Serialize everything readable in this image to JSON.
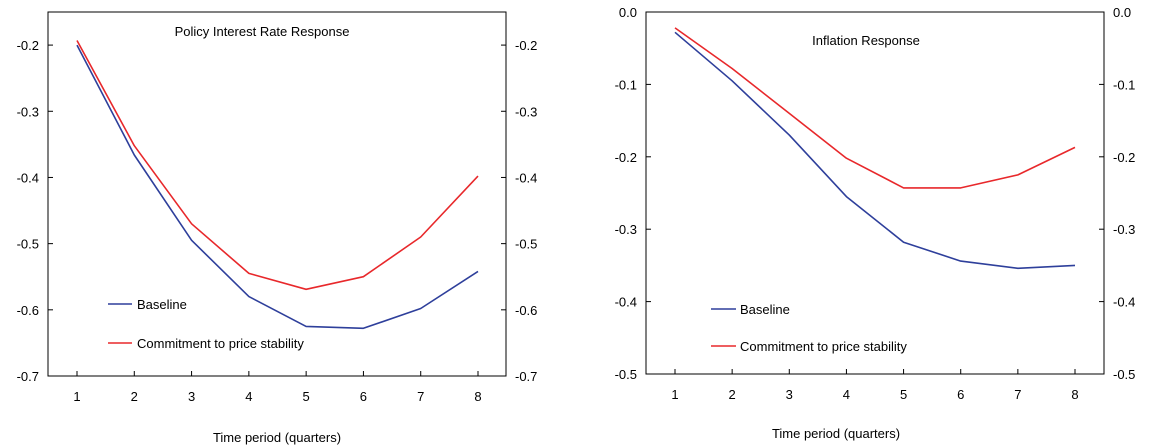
{
  "chart_data": [
    {
      "type": "line",
      "title": "Policy Interest Rate Response",
      "xlabel": "Time period (quarters)",
      "ylabel": "",
      "x": [
        1,
        2,
        3,
        4,
        5,
        6,
        7,
        8
      ],
      "x_tick_labels": [
        "1",
        "2",
        "3",
        "4",
        "5",
        "6",
        "7",
        "8"
      ],
      "ylim": [
        -0.7,
        -0.15
      ],
      "y_ticks": [
        -0.2,
        -0.3,
        -0.4,
        -0.5,
        -0.6,
        -0.7
      ],
      "y_tick_labels": [
        "-0.2",
        "-0.3",
        "-0.4",
        "-0.5",
        "-0.6",
        "-0.7"
      ],
      "right_axis_mirror": true,
      "legend_position": "bottom-left",
      "grid": false,
      "series": [
        {
          "name": "Baseline",
          "color": "#2e3f9b",
          "values": [
            -0.2,
            -0.366,
            -0.495,
            -0.58,
            -0.625,
            -0.628,
            -0.598,
            -0.542
          ]
        },
        {
          "name": "Commitment to price stability",
          "color": "#e8282b",
          "values": [
            -0.193,
            -0.352,
            -0.47,
            -0.545,
            -0.569,
            -0.55,
            -0.49,
            -0.398
          ]
        }
      ]
    },
    {
      "type": "line",
      "title": "Inflation Response",
      "xlabel": "Time period (quarters)",
      "ylabel": "",
      "x": [
        1,
        2,
        3,
        4,
        5,
        6,
        7,
        8
      ],
      "x_tick_labels": [
        "1",
        "2",
        "3",
        "4",
        "5",
        "6",
        "7",
        "8"
      ],
      "ylim": [
        -0.5,
        0.0
      ],
      "y_ticks": [
        0.0,
        -0.1,
        -0.2,
        -0.3,
        -0.4,
        -0.5
      ],
      "y_tick_labels": [
        "0.0",
        "-0.1",
        "-0.2",
        "-0.3",
        "-0.4",
        "-0.5"
      ],
      "right_axis_mirror": true,
      "legend_position": "bottom-left",
      "grid": false,
      "series": [
        {
          "name": "Baseline",
          "color": "#2e3f9b",
          "values": [
            -0.028,
            -0.095,
            -0.17,
            -0.255,
            -0.318,
            -0.344,
            -0.354,
            -0.35
          ]
        },
        {
          "name": "Commitment to price stability",
          "color": "#e8282b",
          "values": [
            -0.022,
            -0.078,
            -0.14,
            -0.202,
            -0.243,
            -0.243,
            -0.225,
            -0.187
          ]
        }
      ]
    }
  ]
}
